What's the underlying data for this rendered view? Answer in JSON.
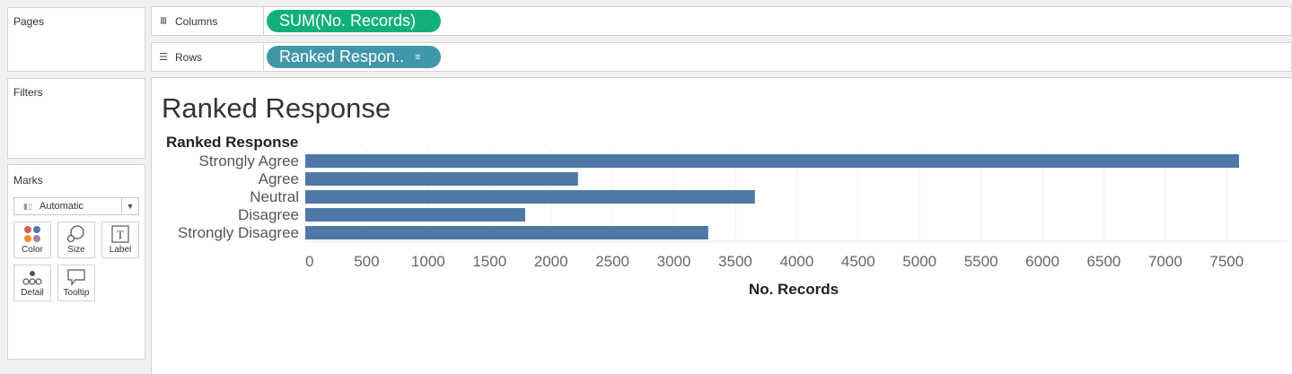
{
  "panels": {
    "pages": "Pages",
    "filters": "Filters",
    "marks": "Marks"
  },
  "shelves": {
    "columns": {
      "label": "Columns",
      "pill": "SUM(No. Records)"
    },
    "rows": {
      "label": "Rows",
      "pill": "Ranked Respon.."
    }
  },
  "marks": {
    "type": "Automatic",
    "buttons": [
      "Color",
      "Size",
      "Label",
      "Detail",
      "Tooltip"
    ]
  },
  "colors": {
    "bar": "#4e79a7",
    "pill_green": "#11b07a",
    "pill_blue": "#4196aa"
  },
  "view_title": "Ranked Response",
  "chart_data": {
    "type": "bar",
    "orientation": "horizontal",
    "row_header": "Ranked Response",
    "categories": [
      "Strongly Agree",
      "Agree",
      "Neutral",
      "Disagree",
      "Strongly Disagree"
    ],
    "values": [
      7600,
      2220,
      3660,
      1790,
      3280
    ],
    "xlabel": "No. Records",
    "xticks": [
      0,
      500,
      1000,
      1500,
      2000,
      2500,
      3000,
      3500,
      4000,
      4500,
      5000,
      5500,
      6000,
      6500,
      7000,
      7500
    ],
    "xlim": [
      0,
      7600
    ],
    "grid": true
  }
}
